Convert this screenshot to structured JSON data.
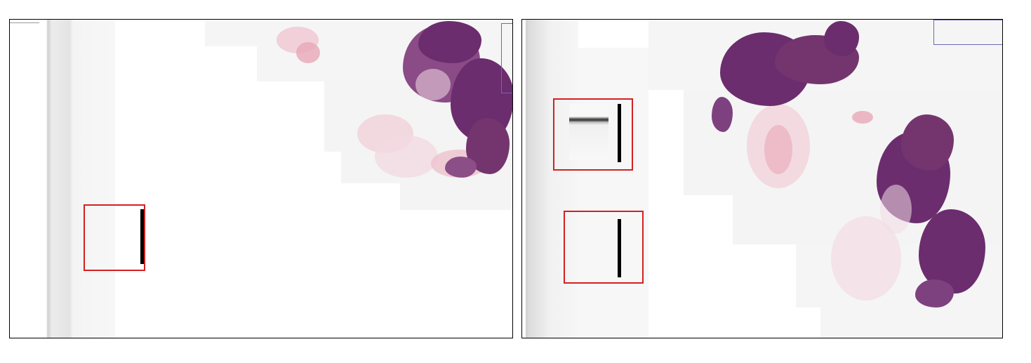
{
  "panels": [
    {
      "name": "left-slide-panel",
      "tissue_color": "#6b2d6e",
      "bg_color": "#f2f2f2"
    },
    {
      "name": "right-slide-panel",
      "tissue_color": "#6b2d6e",
      "bg_color": "#f2f2f2"
    }
  ],
  "colors": {
    "roi_border": "#d42020",
    "scale_bar": "#000000",
    "overview_border": "#6a6ab0",
    "stroma_pink": "#e9a8b8"
  },
  "icons": [
    "scale-bar",
    "roi-box",
    "overview-box"
  ]
}
